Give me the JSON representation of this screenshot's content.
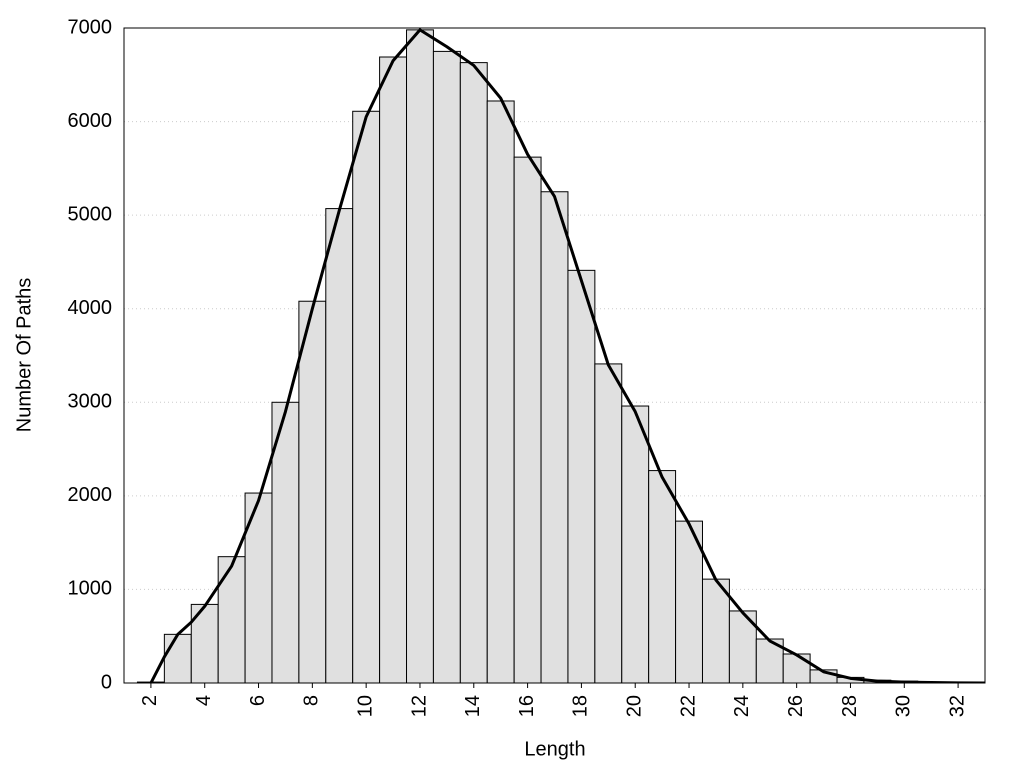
{
  "chart_data": {
    "type": "histogram",
    "xlabel": "Length",
    "ylabel": "Number Of Paths",
    "bins": [
      1.5,
      2.5,
      3.5,
      4.5,
      5.5,
      6.5,
      7.5,
      8.5,
      9.5,
      10.5,
      11.5,
      12.5,
      13.5,
      14.5,
      15.5,
      16.5,
      17.5,
      18.5,
      19.5,
      20.5,
      21.5,
      22.5,
      23.5,
      24.5,
      25.5,
      26.5,
      27.5,
      28.5,
      29.5,
      30.5,
      31.5,
      32.5
    ],
    "values": [
      10,
      520,
      840,
      1350,
      2030,
      3000,
      4080,
      5070,
      6110,
      6690,
      6980,
      6750,
      6630,
      6220,
      5620,
      5250,
      4410,
      3410,
      2960,
      2270,
      1730,
      1110,
      770,
      470,
      310,
      140,
      60,
      30,
      20,
      10,
      10
    ],
    "color": "#e0e0e0",
    "curve": {
      "color": "#000000",
      "x": [
        2,
        2.5,
        3,
        3.5,
        4,
        5,
        6,
        7,
        8,
        9,
        10,
        11,
        12,
        13,
        14,
        15,
        16,
        17,
        18,
        19,
        20,
        21,
        22,
        23,
        24,
        25,
        26,
        27,
        28,
        29,
        30,
        31,
        32,
        33
      ],
      "values": [
        0,
        280,
        520,
        650,
        820,
        1250,
        1950,
        2900,
        4000,
        5050,
        6050,
        6650,
        6980,
        6800,
        6600,
        6250,
        5650,
        5200,
        4300,
        3400,
        2900,
        2200,
        1700,
        1100,
        750,
        450,
        300,
        120,
        50,
        20,
        10,
        5,
        2,
        0
      ]
    },
    "xlim": [
      1,
      33
    ],
    "xticks": [
      2,
      4,
      6,
      8,
      10,
      12,
      14,
      16,
      18,
      20,
      22,
      24,
      26,
      28,
      30,
      32
    ],
    "ylim": [
      0,
      7000
    ],
    "yticks": [
      0,
      1000,
      2000,
      3000,
      4000,
      5000,
      6000,
      7000
    ],
    "grid": true
  }
}
